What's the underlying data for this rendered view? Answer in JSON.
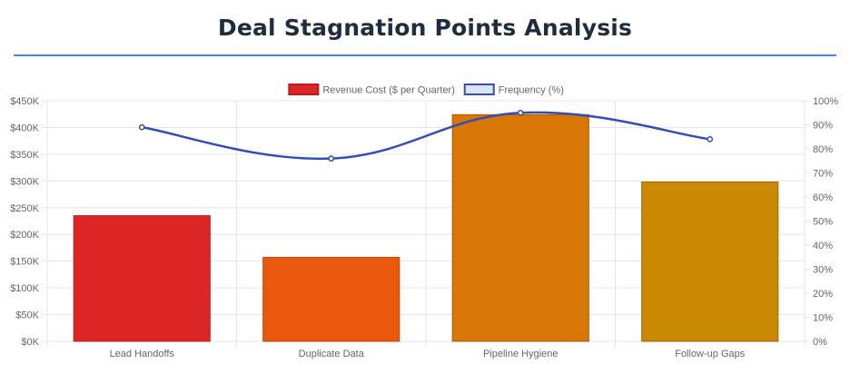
{
  "title": "Deal Stagnation Points Analysis",
  "chart_data": {
    "type": "bar",
    "categories": [
      "Lead Handoffs",
      "Duplicate Data",
      "Pipeline Hygiene",
      "Follow-up Gaps"
    ],
    "series": [
      {
        "name": "Revenue Cost ($ per Quarter)",
        "type": "bar",
        "axis": "left",
        "values": [
          235000,
          157000,
          424000,
          298000
        ],
        "colors": [
          "#dc2626",
          "#ea580c",
          "#d97706",
          "#ca8a04"
        ],
        "border_colors": [
          "#b91c1c",
          "#c2410c",
          "#b45309",
          "#a16207"
        ]
      },
      {
        "name": "Frequency (%)",
        "type": "line",
        "axis": "right",
        "values": [
          89,
          76,
          95,
          84
        ],
        "color": "#2f4fb5"
      }
    ],
    "y_left": {
      "min": 0,
      "max": 450000,
      "step": 50000,
      "tick_labels": [
        "$0K",
        "$50K",
        "$100K",
        "$150K",
        "$200K",
        "$250K",
        "$300K",
        "$350K",
        "$400K",
        "$450K"
      ]
    },
    "y_right": {
      "min": 0,
      "max": 100,
      "step": 10,
      "tick_labels": [
        "0%",
        "10%",
        "20%",
        "30%",
        "40%",
        "50%",
        "60%",
        "70%",
        "80%",
        "90%",
        "100%"
      ]
    },
    "legend": {
      "position": "top"
    },
    "grid": true
  }
}
